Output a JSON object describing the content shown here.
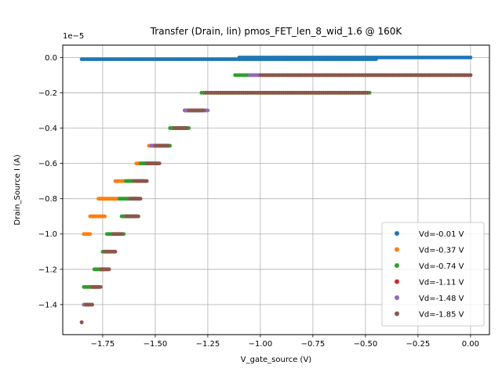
{
  "chart_data": {
    "type": "scatter",
    "title": "Transfer (Drain, lin) pmos_FET_len_8_wid_1.6 @ 160K",
    "xlabel": "V_gate_source (V)",
    "ylabel": "Drain_Source I (A)",
    "y_offset_text": "1e−5",
    "xlim": [
      -1.94,
      0.09
    ],
    "ylim": [
      -1.57,
      0.07
    ],
    "x_ticks": [
      -1.75,
      -1.5,
      -1.25,
      -1.0,
      -0.75,
      -0.5,
      -0.25,
      0.0
    ],
    "x_tick_labels": [
      "−1.75",
      "−1.50",
      "−1.25",
      "−1.00",
      "−0.75",
      "−0.50",
      "−0.25",
      "0.00"
    ],
    "y_ticks": [
      0.0,
      -0.2,
      -0.4,
      -0.6,
      -0.8,
      -1.0,
      -1.2,
      -1.4
    ],
    "y_tick_labels": [
      "0.0",
      "−0.2",
      "−0.4",
      "−0.6",
      "−0.8",
      "−1.0",
      "−1.2",
      "−1.4"
    ],
    "grid": true,
    "legend_position": "bottom-right",
    "series": [
      {
        "name": "Vd=-0.01 V",
        "color": "#1f77b4",
        "segments": [
          {
            "x1": -1.85,
            "x2": -0.45,
            "y": -0.01,
            "step": 0.01
          },
          {
            "x1": -1.1,
            "x2": 0.0,
            "y": 0.0,
            "step": 0.01
          }
        ]
      },
      {
        "name": "Vd=-0.37 V",
        "color": "#ff7f0e",
        "segments": [
          {
            "x1": -1.84,
            "x2": -1.81,
            "y": -1.0,
            "step": 0.005
          },
          {
            "x1": -1.81,
            "x2": -1.74,
            "y": -0.9,
            "step": 0.005
          },
          {
            "x1": -1.77,
            "x2": -1.67,
            "y": -0.8,
            "step": 0.005
          },
          {
            "x1": -1.69,
            "x2": -1.6,
            "y": -0.7,
            "step": 0.005
          },
          {
            "x1": -1.59,
            "x2": -1.53,
            "y": -0.6,
            "step": 0.005
          },
          {
            "x1": -1.53,
            "x2": -1.46,
            "y": -0.5,
            "step": 0.005
          },
          {
            "x1": -1.42,
            "x2": -1.35,
            "y": -0.4,
            "step": 0.005
          },
          {
            "x1": -1.36,
            "x2": -1.29,
            "y": -0.3,
            "step": 0.005
          },
          {
            "x1": -1.27,
            "x2": -0.5,
            "y": -0.2,
            "step": 0.01
          },
          {
            "x1": -1.12,
            "x2": 0.0,
            "y": -0.1,
            "step": 0.01
          }
        ]
      },
      {
        "name": "Vd=-0.74 V",
        "color": "#2ca02c",
        "segments": [
          {
            "x1": -1.84,
            "x2": -1.8,
            "y": -1.3,
            "step": 0.005
          },
          {
            "x1": -1.79,
            "x2": -1.74,
            "y": -1.2,
            "step": 0.005
          },
          {
            "x1": -1.75,
            "x2": -1.7,
            "y": -1.1,
            "step": 0.005
          },
          {
            "x1": -1.73,
            "x2": -1.65,
            "y": -1.0,
            "step": 0.005
          },
          {
            "x1": -1.66,
            "x2": -1.59,
            "y": -0.9,
            "step": 0.005
          },
          {
            "x1": -1.67,
            "x2": -1.58,
            "y": -0.8,
            "step": 0.005
          },
          {
            "x1": -1.64,
            "x2": -1.56,
            "y": -0.7,
            "step": 0.005
          },
          {
            "x1": -1.57,
            "x2": -1.49,
            "y": -0.6,
            "step": 0.005
          },
          {
            "x1": -1.51,
            "x2": -1.43,
            "y": -0.5,
            "step": 0.005
          },
          {
            "x1": -1.43,
            "x2": -1.34,
            "y": -0.4,
            "step": 0.005
          },
          {
            "x1": -1.36,
            "x2": -1.27,
            "y": -0.3,
            "step": 0.005
          },
          {
            "x1": -1.28,
            "x2": -0.48,
            "y": -0.2,
            "step": 0.01
          },
          {
            "x1": -1.12,
            "x2": 0.0,
            "y": -0.1,
            "step": 0.01
          }
        ]
      },
      {
        "name": "Vd=-1.11 V",
        "color": "#d62728",
        "segments": [
          {
            "x1": -1.8,
            "x2": -1.77,
            "y": -1.3,
            "step": 0.005
          },
          {
            "x1": -1.76,
            "x2": -1.72,
            "y": -1.2,
            "step": 0.005
          }
        ]
      },
      {
        "name": "Vd=-1.48 V",
        "color": "#9467bd",
        "segments": [
          {
            "x1": -1.84,
            "x2": -1.8,
            "y": -1.4,
            "step": 0.005
          },
          {
            "x1": -1.52,
            "x2": -1.45,
            "y": -0.5,
            "step": 0.005
          },
          {
            "x1": -1.36,
            "x2": -1.25,
            "y": -0.3,
            "step": 0.005
          },
          {
            "x1": -1.05,
            "x2": 0.0,
            "y": -0.1,
            "step": 0.01
          }
        ]
      },
      {
        "name": "Vd=-1.85 V",
        "color": "#8c564b",
        "segments": [
          {
            "x1": -1.85,
            "x2": -1.85,
            "y": -1.5,
            "step": 0.01
          },
          {
            "x1": -1.83,
            "x2": -1.8,
            "y": -1.4,
            "step": 0.005
          },
          {
            "x1": -1.8,
            "x2": -1.76,
            "y": -1.3,
            "step": 0.005
          },
          {
            "x1": -1.76,
            "x2": -1.72,
            "y": -1.2,
            "step": 0.005
          },
          {
            "x1": -1.74,
            "x2": -1.69,
            "y": -1.1,
            "step": 0.005
          },
          {
            "x1": -1.7,
            "x2": -1.66,
            "y": -1.0,
            "step": 0.005
          },
          {
            "x1": -1.64,
            "x2": -1.58,
            "y": -0.9,
            "step": 0.005
          },
          {
            "x1": -1.62,
            "x2": -1.57,
            "y": -0.8,
            "step": 0.005
          },
          {
            "x1": -1.6,
            "x2": -1.54,
            "y": -0.7,
            "step": 0.005
          },
          {
            "x1": -1.54,
            "x2": -1.48,
            "y": -0.6,
            "step": 0.005
          },
          {
            "x1": -1.5,
            "x2": -1.44,
            "y": -0.5,
            "step": 0.005
          },
          {
            "x1": -1.41,
            "x2": -1.35,
            "y": -0.4,
            "step": 0.005
          },
          {
            "x1": -1.34,
            "x2": -1.27,
            "y": -0.3,
            "step": 0.005
          },
          {
            "x1": -1.26,
            "x2": -0.49,
            "y": -0.2,
            "step": 0.01
          },
          {
            "x1": -1.0,
            "x2": 0.0,
            "y": -0.1,
            "step": 0.01
          }
        ]
      }
    ]
  }
}
